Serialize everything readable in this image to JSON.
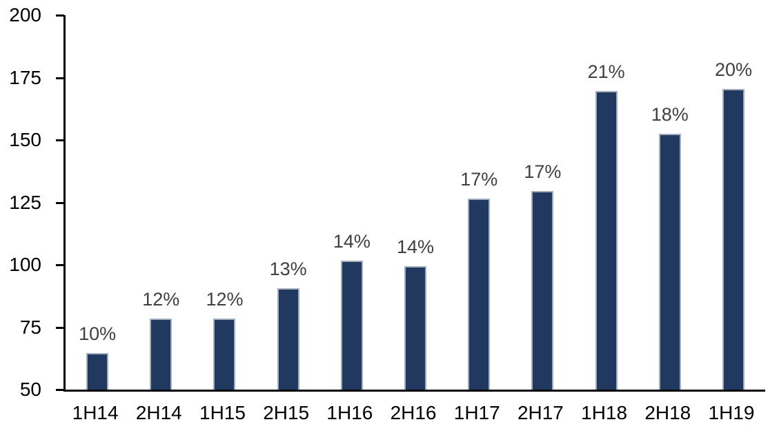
{
  "chart_data": {
    "type": "bar",
    "title": "",
    "xlabel": "",
    "ylabel": "",
    "categories": [
      "1H14",
      "2H14",
      "1H15",
      "2H15",
      "1H16",
      "2H16",
      "1H17",
      "2H17",
      "1H18",
      "2H18",
      "1H19"
    ],
    "values": [
      64,
      78,
      78,
      90,
      101,
      99,
      126,
      129,
      169,
      152,
      170
    ],
    "data_labels": [
      "10%",
      "12%",
      "12%",
      "13%",
      "14%",
      "14%",
      "17%",
      "17%",
      "21%",
      "18%",
      "20%"
    ],
    "ylim": [
      50,
      200
    ],
    "yticks": [
      200,
      175,
      150,
      125,
      100,
      75,
      50
    ],
    "grid": "off",
    "legend": "none",
    "colors": {
      "bar_fill": "#21395E",
      "bar_border": "#9FAEC5",
      "data_label": "#404040",
      "axis_line": "#000000",
      "tick_label": "#000000",
      "background": "#FFFFFF"
    }
  }
}
